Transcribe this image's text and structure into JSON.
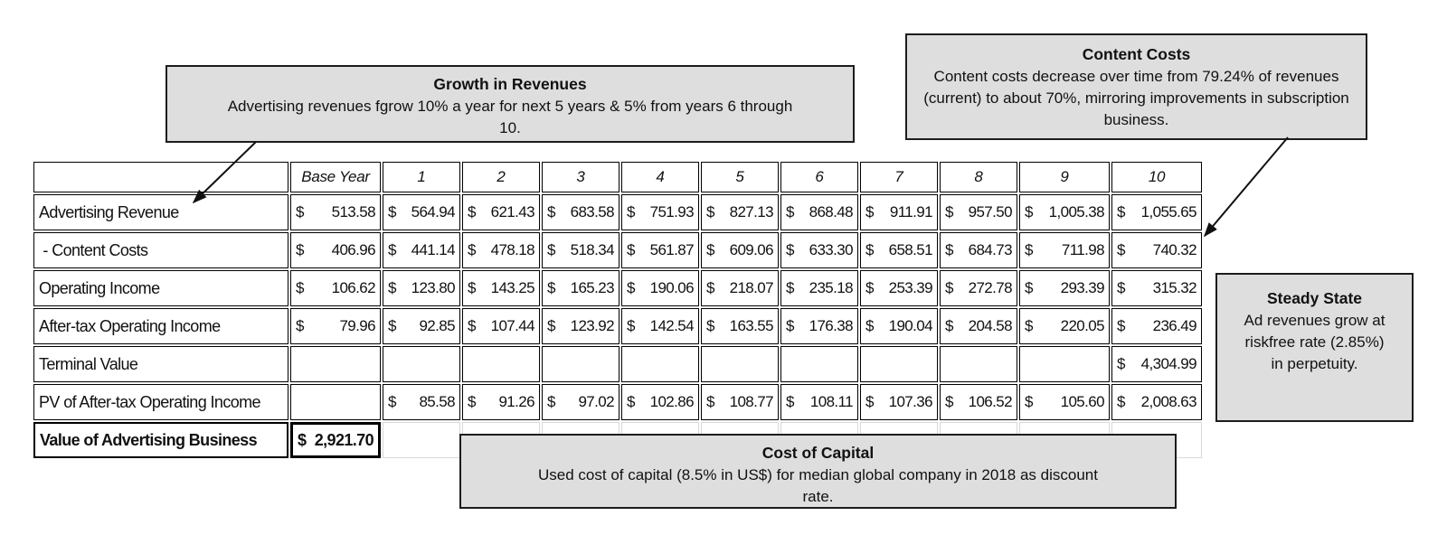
{
  "callouts": {
    "growth": {
      "title": "Growth in Revenues",
      "body": "Advertising revenues fgrow 10% a year for next 5 years & 5% from years 6 through 10."
    },
    "content_costs": {
      "title": "Content Costs",
      "body": "Content costs decrease over time from 79.24% of revenues (current) to about 70%, mirroring improvements in subscription business."
    },
    "steady_state": {
      "title": "Steady State",
      "body": "Ad revenues grow at riskfree rate (2.85%) in perpetuity."
    },
    "cost_of_capital": {
      "title": "Cost of Capital",
      "body": "Used cost of capital (8.5% in US$) for median global company in 2018 as discount rate."
    }
  },
  "table": {
    "currency": "$",
    "columns": [
      "",
      "Base Year",
      "1",
      "2",
      "3",
      "4",
      "5",
      "6",
      "7",
      "8",
      "9",
      "10"
    ],
    "rows": [
      {
        "label": "Advertising Revenue",
        "values": [
          "513.58",
          "564.94",
          "621.43",
          "683.58",
          "751.93",
          "827.13",
          "868.48",
          "911.91",
          "957.50",
          "1,005.38",
          "1,055.65"
        ]
      },
      {
        "label": " - Content Costs",
        "values": [
          "406.96",
          "441.14",
          "478.18",
          "518.34",
          "561.87",
          "609.06",
          "633.30",
          "658.51",
          "684.73",
          "711.98",
          "740.32"
        ]
      },
      {
        "label": "Operating Income",
        "values": [
          "106.62",
          "123.80",
          "143.25",
          "165.23",
          "190.06",
          "218.07",
          "235.18",
          "253.39",
          "272.78",
          "293.39",
          "315.32"
        ]
      },
      {
        "label": "After-tax Operating Income",
        "values": [
          "79.96",
          "92.85",
          "107.44",
          "123.92",
          "142.54",
          "163.55",
          "176.38",
          "190.04",
          "204.58",
          "220.05",
          "236.49"
        ]
      },
      {
        "label": "Terminal Value",
        "values": [
          "",
          "",
          "",
          "",
          "",
          "",
          "",
          "",
          "",
          "",
          "4,304.99"
        ]
      },
      {
        "label": "PV of After-tax Operating Income",
        "values": [
          "",
          "85.58",
          "91.26",
          "97.02",
          "102.86",
          "108.77",
          "108.11",
          "107.36",
          "106.52",
          "105.60",
          "2,008.63"
        ]
      },
      {
        "label": "Value of Advertising Business",
        "summary": true,
        "values": [
          "2,921.70",
          "",
          "",
          "",
          "",
          "",
          "",
          "",
          "",
          "",
          ""
        ]
      }
    ]
  },
  "colors": {
    "callout_background": "#dedede",
    "callout_border": "#1c1c1c",
    "grid_line": "#000000",
    "faint_grid_line": "#d8d8d8",
    "text": "#111111"
  }
}
